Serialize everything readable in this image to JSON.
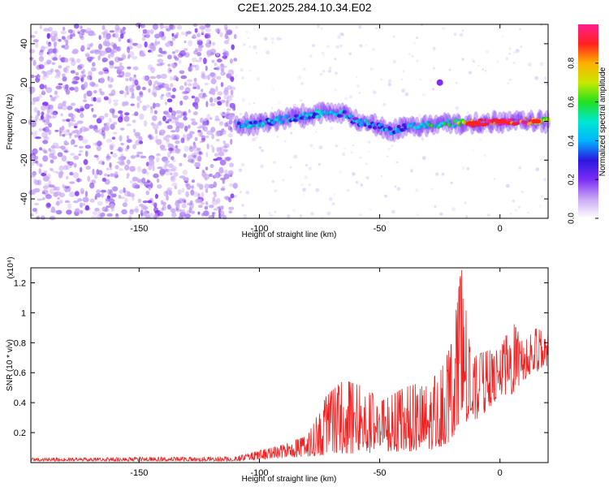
{
  "title": "C2E1.2025.284.10.34.E02",
  "chart_data": [
    {
      "type": "heatmap",
      "title": "C2E1.2025.284.10.34.E02",
      "xlabel": "Height of straight line (km)",
      "ylabel": "Frequency (Hz)",
      "xlim": [
        -195,
        20
      ],
      "ylim": [
        -50,
        50
      ],
      "xticks": [
        -150,
        -100,
        -50,
        0
      ],
      "yticks": [
        -40,
        -20,
        0,
        20,
        40
      ],
      "colorbar": {
        "label": "Normalized spectral amplitude",
        "range": [
          0,
          1
        ],
        "ticks": [
          0.0,
          0.2,
          0.4,
          0.6,
          0.8
        ],
        "colors": [
          "#ffffff",
          "#c9a8f5",
          "#7b2cf5",
          "#2a18e0",
          "#00b4ff",
          "#00e8d0",
          "#22e020",
          "#c8e800",
          "#ffb000",
          "#ff2020",
          "#ff1f8f"
        ]
      },
      "noise_region_x": [
        -195,
        -110
      ],
      "signal_track": {
        "x": [
          -110,
          -100,
          -90,
          -80,
          -70,
          -65,
          -60,
          -55,
          -50,
          -45,
          -40,
          -30,
          -20,
          -10,
          0,
          10,
          20
        ],
        "y": [
          -2,
          -1,
          1,
          3,
          5,
          4,
          0,
          -1,
          -3,
          -5,
          -3,
          -2,
          -1,
          -1,
          0,
          0,
          0
        ],
        "amplitude": [
          0.35,
          0.4,
          0.4,
          0.45,
          0.4,
          0.45,
          0.35,
          0.4,
          0.3,
          0.4,
          0.4,
          0.45,
          0.5,
          0.95,
          0.95,
          0.9,
          0.6
        ]
      },
      "isolated_peak": {
        "x": -25,
        "y": 20
      }
    },
    {
      "type": "line",
      "xlabel": "Height of straight line (km)",
      "ylabel": "SNR (10 * v/v)",
      "multiplier": "(x10⁴)",
      "xlim": [
        -195,
        20
      ],
      "ylim": [
        0,
        1.3
      ],
      "xticks": [
        -150,
        -100,
        -50,
        0
      ],
      "yticks": [
        0.2,
        0.4,
        0.6,
        0.8,
        1.0,
        1.2
      ],
      "color": "#ee2222",
      "envelope": {
        "x": [
          -195,
          -110,
          -100,
          -90,
          -80,
          -72,
          -65,
          -55,
          -50,
          -40,
          -30,
          -25,
          -20,
          -16,
          -12,
          -5,
          0,
          5,
          10,
          15,
          20
        ],
        "y": [
          0.03,
          0.04,
          0.08,
          0.12,
          0.18,
          0.45,
          0.55,
          0.5,
          0.4,
          0.5,
          0.55,
          0.6,
          0.8,
          1.3,
          0.7,
          0.75,
          0.75,
          0.95,
          0.8,
          0.9,
          0.85
        ],
        "floor": [
          0.01,
          0.01,
          0.02,
          0.03,
          0.04,
          0.05,
          0.06,
          0.06,
          0.07,
          0.07,
          0.08,
          0.1,
          0.15,
          0.3,
          0.25,
          0.35,
          0.45,
          0.45,
          0.55,
          0.6,
          0.65
        ]
      }
    }
  ]
}
